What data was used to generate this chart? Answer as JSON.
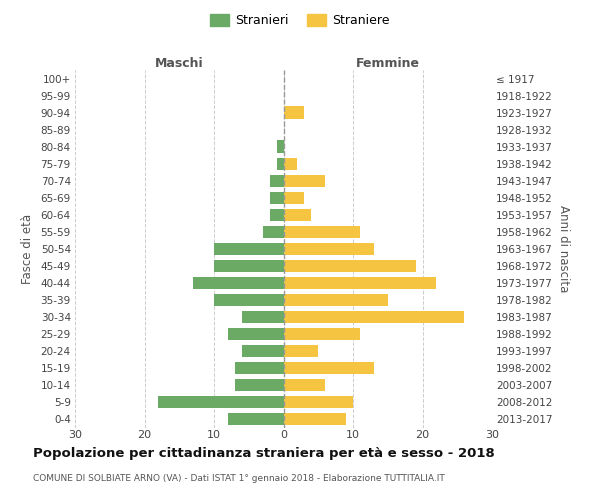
{
  "age_groups": [
    "100+",
    "95-99",
    "90-94",
    "85-89",
    "80-84",
    "75-79",
    "70-74",
    "65-69",
    "60-64",
    "55-59",
    "50-54",
    "45-49",
    "40-44",
    "35-39",
    "30-34",
    "25-29",
    "20-24",
    "15-19",
    "10-14",
    "5-9",
    "0-4"
  ],
  "birth_years": [
    "≤ 1917",
    "1918-1922",
    "1923-1927",
    "1928-1932",
    "1933-1937",
    "1938-1942",
    "1943-1947",
    "1948-1952",
    "1953-1957",
    "1958-1962",
    "1963-1967",
    "1968-1972",
    "1973-1977",
    "1978-1982",
    "1983-1987",
    "1988-1992",
    "1993-1997",
    "1998-2002",
    "2003-2007",
    "2008-2012",
    "2013-2017"
  ],
  "males": [
    0,
    0,
    0,
    0,
    1,
    1,
    2,
    2,
    2,
    3,
    10,
    10,
    13,
    10,
    6,
    8,
    6,
    7,
    7,
    18,
    8
  ],
  "females": [
    0,
    0,
    3,
    0,
    0,
    2,
    6,
    3,
    4,
    11,
    13,
    19,
    22,
    15,
    26,
    11,
    5,
    13,
    6,
    10,
    9
  ],
  "male_color": "#6aaa64",
  "female_color": "#f5c542",
  "background_color": "#ffffff",
  "grid_color": "#cccccc",
  "title": "Popolazione per cittadinanza straniera per età e sesso - 2018",
  "subtitle": "COMUNE DI SOLBIATE ARNO (VA) - Dati ISTAT 1° gennaio 2018 - Elaborazione TUTTITALIA.IT",
  "xlabel_left": "Maschi",
  "xlabel_right": "Femmine",
  "ylabel_left": "Fasce di età",
  "ylabel_right": "Anni di nascita",
  "legend_males": "Stranieri",
  "legend_females": "Straniere",
  "xlim": 30
}
